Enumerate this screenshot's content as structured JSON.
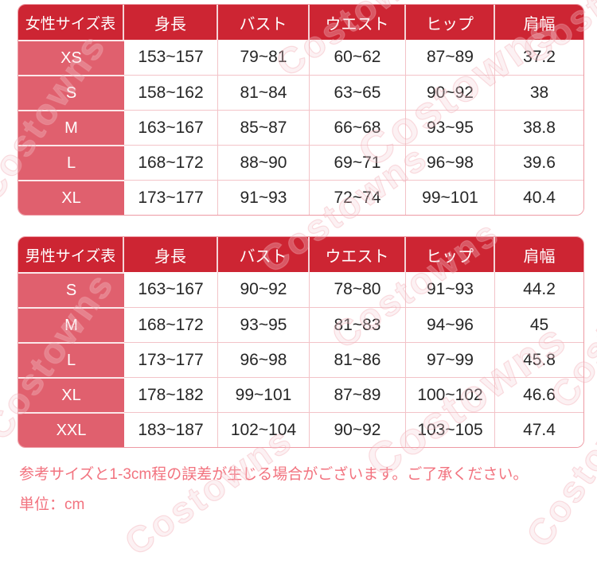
{
  "colors": {
    "header_red": "#cd2533",
    "size_pink": "#e0606e",
    "border_pink": "#ee9aa3",
    "divider_pink": "#f3c3c8",
    "note_pink": "#f2737f",
    "text_dark": "#262626",
    "watermark_pink": "#f0a4ad"
  },
  "women_table": {
    "title": "女性サイズ表",
    "columns": [
      "身長",
      "バスト",
      "ウエスト",
      "ヒップ",
      "肩幅"
    ],
    "rows": [
      {
        "size": "XS",
        "values": [
          "153~157",
          "79~81",
          "60~62",
          "87~89",
          "37.2"
        ]
      },
      {
        "size": "S",
        "values": [
          "158~162",
          "81~84",
          "63~65",
          "90~92",
          "38"
        ]
      },
      {
        "size": "M",
        "values": [
          "163~167",
          "85~87",
          "66~68",
          "93~95",
          "38.8"
        ]
      },
      {
        "size": "L",
        "values": [
          "168~172",
          "88~90",
          "69~71",
          "96~98",
          "39.6"
        ]
      },
      {
        "size": "XL",
        "values": [
          "173~177",
          "91~93",
          "72~74",
          "99~101",
          "40.4"
        ]
      }
    ]
  },
  "men_table": {
    "title": "男性サイズ表",
    "columns": [
      "身長",
      "バスト",
      "ウエスト",
      "ヒップ",
      "肩幅"
    ],
    "rows": [
      {
        "size": "S",
        "values": [
          "163~167",
          "90~92",
          "78~80",
          "91~93",
          "44.2"
        ]
      },
      {
        "size": "M",
        "values": [
          "168~172",
          "93~95",
          "81~83",
          "94~96",
          "45"
        ]
      },
      {
        "size": "L",
        "values": [
          "173~177",
          "96~98",
          "81~86",
          "97~99",
          "45.8"
        ]
      },
      {
        "size": "XL",
        "values": [
          "178~182",
          "99~101",
          "87~89",
          "100~102",
          "46.6"
        ]
      },
      {
        "size": "XXL",
        "values": [
          "183~187",
          "102~104",
          "90~92",
          "103~105",
          "47.4"
        ]
      }
    ]
  },
  "notes": {
    "tolerance": "参考サイズと1-3cm程の誤差が生じる場合がございます。ご了承ください。",
    "unit": "単位：cm"
  },
  "watermark": {
    "text": "Costowns"
  }
}
